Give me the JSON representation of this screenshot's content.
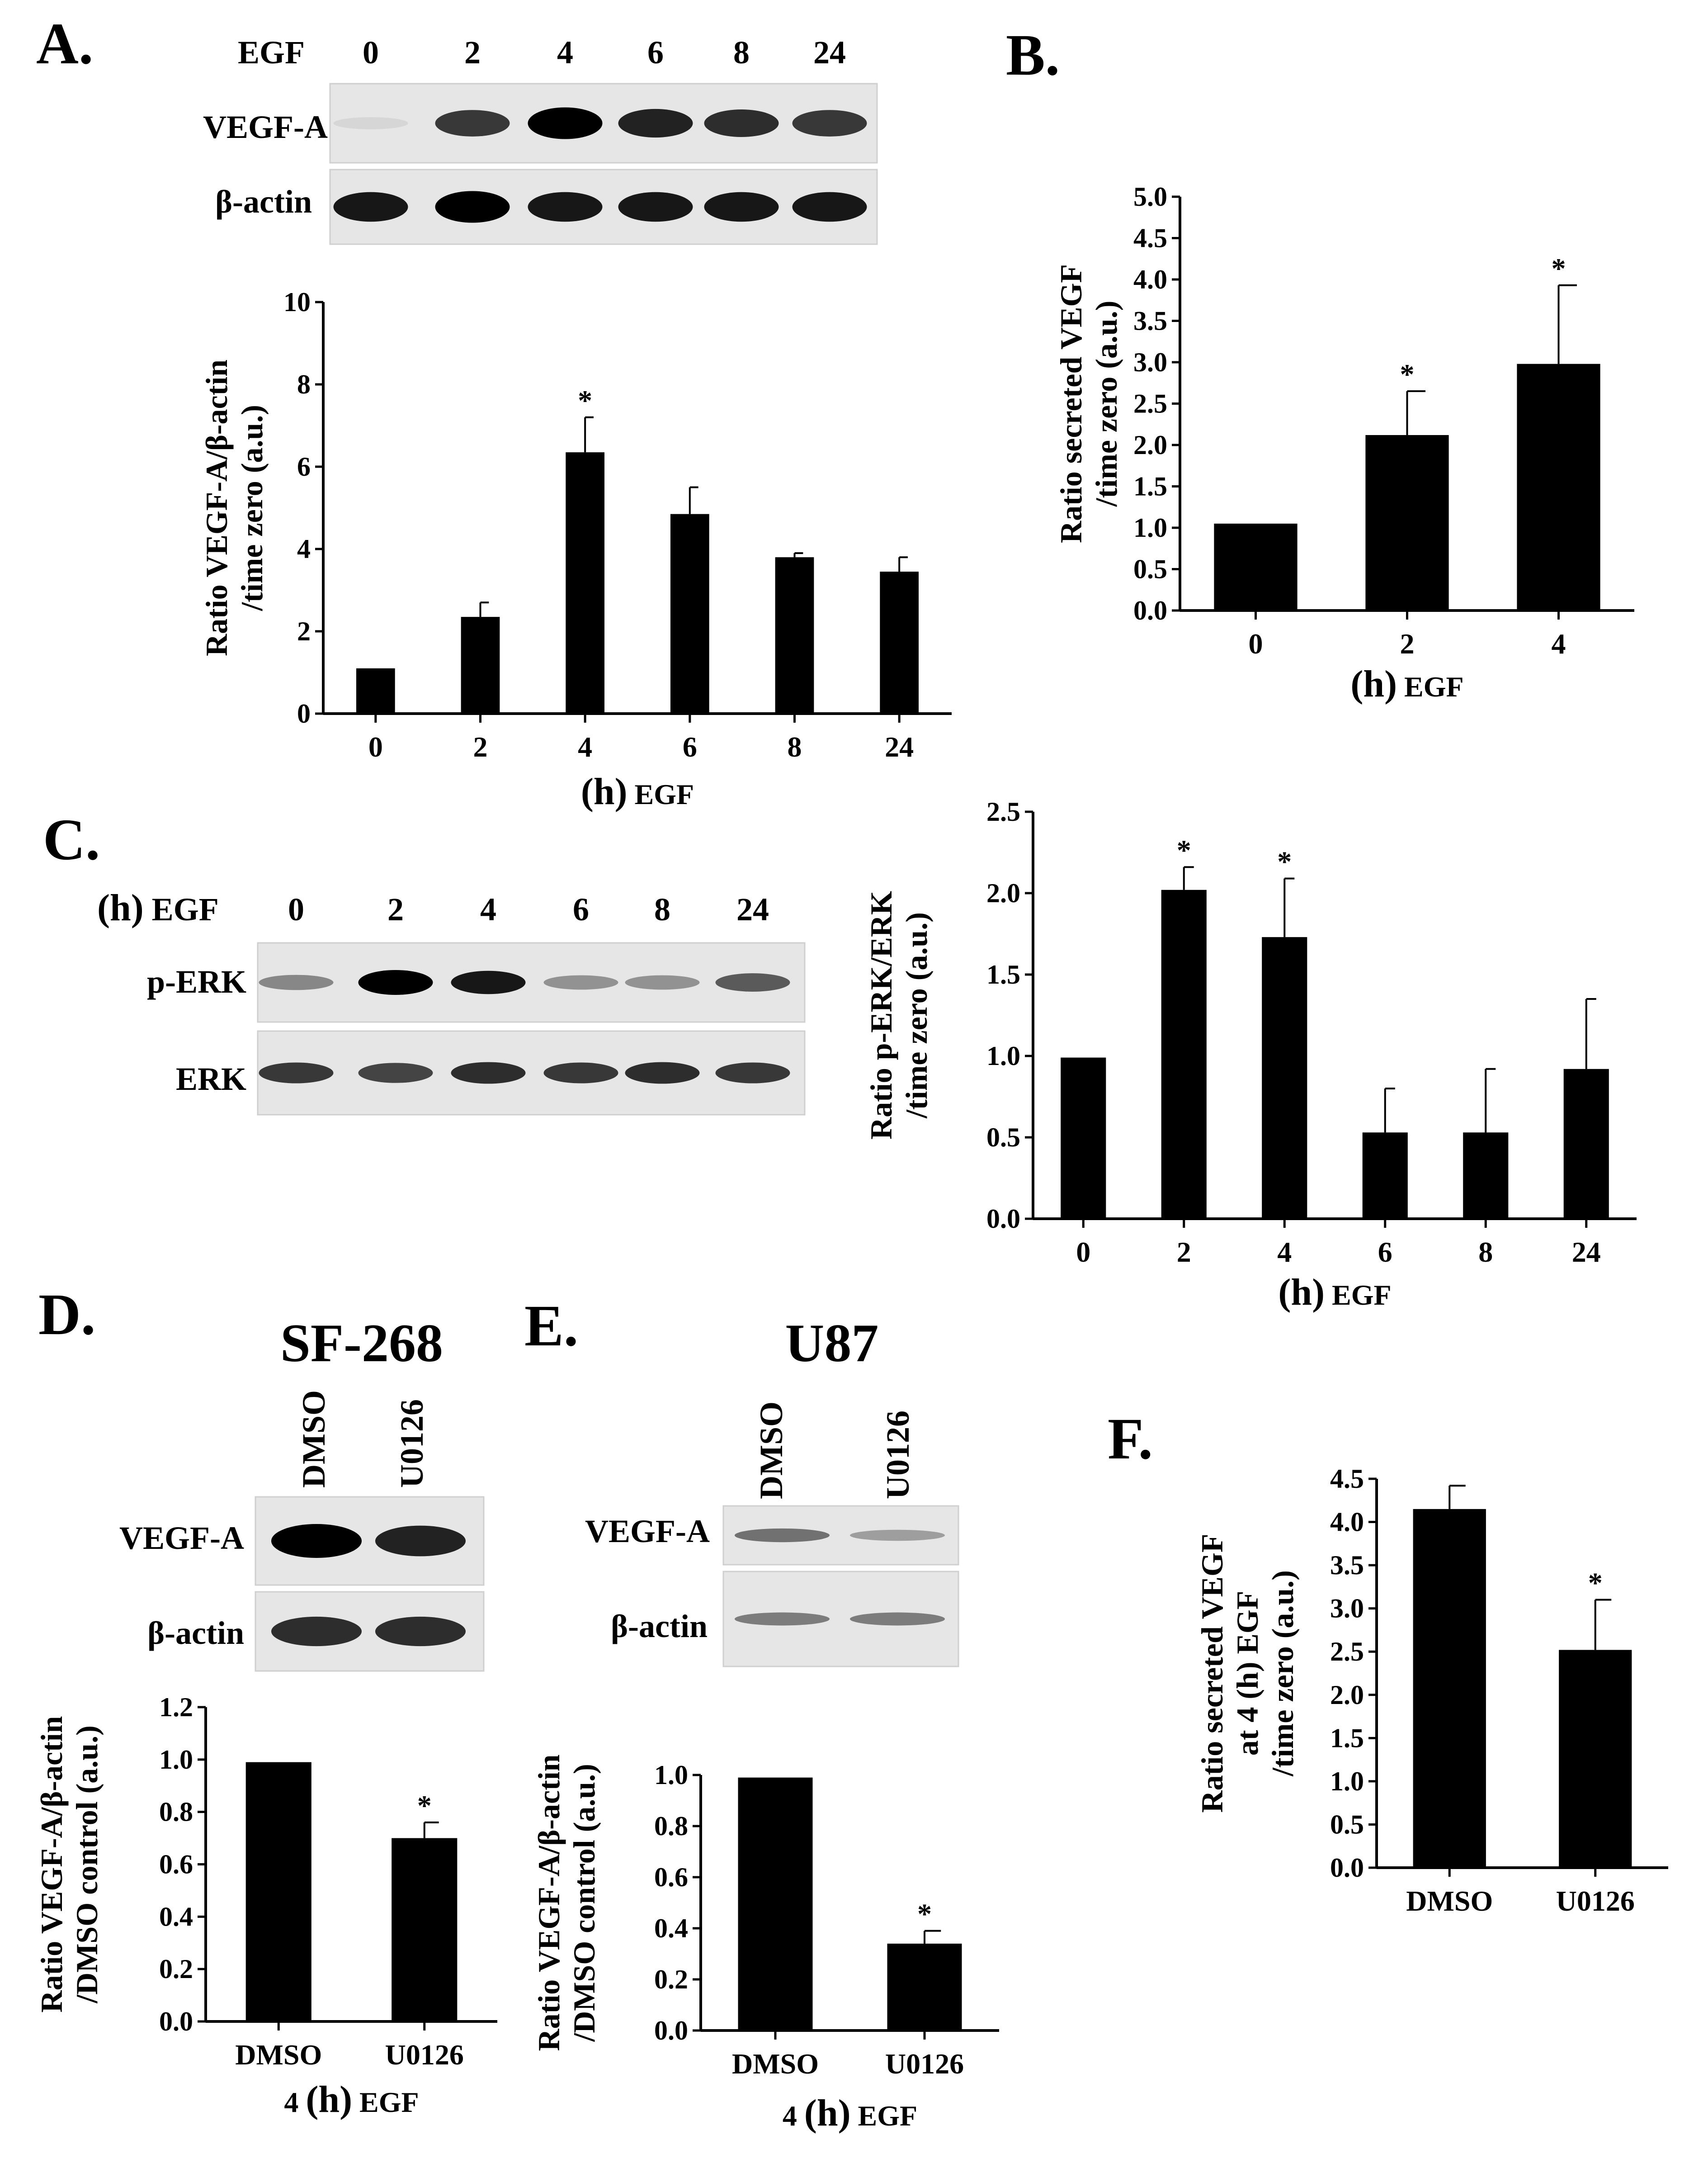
{
  "panels": {
    "A": {
      "letter": "A.",
      "blot": {
        "header": "EGF",
        "lanes": [
          "0",
          "2",
          "4",
          "6",
          "8",
          "24"
        ],
        "rows": [
          {
            "label": "VEGF-A",
            "intensity": [
              0.05,
              0.75,
              1.0,
              0.85,
              0.8,
              0.75
            ]
          },
          {
            "label": "β-actin",
            "intensity": [
              0.9,
              1.0,
              0.9,
              0.9,
              0.9,
              0.9
            ]
          }
        ]
      },
      "chart": {
        "ylabel_lines": [
          "Ratio VEGF-A/β-actin",
          "/time zero (a.u.)"
        ],
        "xlabel_unit": "(h)",
        "xlabel_text": "EGF",
        "categories": [
          "0",
          "2",
          "4",
          "6",
          "8",
          "24"
        ],
        "values": [
          1.1,
          2.35,
          6.35,
          4.85,
          3.8,
          3.45
        ],
        "errors": [
          0,
          0.35,
          0.85,
          0.65,
          0.1,
          0.35
        ],
        "significant": [
          false,
          false,
          true,
          false,
          false,
          false
        ],
        "ymin": 0,
        "ymax": 10,
        "yticks": [
          "0",
          "2",
          "4",
          "6",
          "8",
          "10"
        ]
      }
    },
    "B": {
      "letter": "B.",
      "chart": {
        "ylabel_lines": [
          "Ratio secreted VEGF",
          "/time zero (a.u.)"
        ],
        "xlabel_unit": "(h)",
        "xlabel_text": "EGF",
        "categories": [
          "0",
          "2",
          "4"
        ],
        "values": [
          1.05,
          2.12,
          2.98
        ],
        "errors": [
          0,
          0.53,
          0.95
        ],
        "significant": [
          false,
          true,
          true
        ],
        "ymin": 0,
        "ymax": 5.0,
        "yticks": [
          "0.0",
          "0.5",
          "1.0",
          "1.5",
          "2.0",
          "2.5",
          "3.0",
          "3.5",
          "4.0",
          "4.5",
          "5.0"
        ]
      }
    },
    "C": {
      "letter": "C.",
      "blot": {
        "header_unit": "(h)",
        "header": "EGF",
        "lanes": [
          "0",
          "2",
          "4",
          "6",
          "8",
          "24"
        ],
        "rows": [
          {
            "label": "p-ERK",
            "intensity": [
              0.4,
              1.0,
              0.9,
              0.35,
              0.35,
              0.6
            ]
          },
          {
            "label": "ERK",
            "intensity": [
              0.75,
              0.7,
              0.8,
              0.75,
              0.8,
              0.75
            ]
          }
        ]
      },
      "chart": {
        "ylabel_lines": [
          "Ratio p-ERK/ERK",
          "/time zero (a.u.)"
        ],
        "xlabel_unit": "(h)",
        "xlabel_text": "EGF",
        "categories": [
          "0",
          "2",
          "4",
          "6",
          "8",
          "24"
        ],
        "values": [
          0.99,
          2.02,
          1.73,
          0.53,
          0.53,
          0.92
        ],
        "errors": [
          0,
          0.14,
          0.36,
          0.27,
          0.39,
          0.43
        ],
        "significant": [
          false,
          true,
          true,
          false,
          false,
          false
        ],
        "ymin": 0,
        "ymax": 2.5,
        "yticks": [
          "0.0",
          "0.5",
          "1.0",
          "1.5",
          "2.0",
          "2.5"
        ]
      }
    },
    "D": {
      "letter": "D.",
      "cell_line": "SF-268",
      "blot": {
        "lanes": [
          "DMSO",
          "U0126"
        ],
        "rows": [
          {
            "label": "VEGF-A",
            "intensity": [
              1.0,
              0.85
            ]
          },
          {
            "label": "β-actin",
            "intensity": [
              0.8,
              0.8
            ]
          }
        ]
      },
      "chart": {
        "ylabel_lines": [
          "Ratio VEGF-A/β-actin",
          "/DMSO control (a.u.)"
        ],
        "xlabel_prefix": "4",
        "xlabel_unit": "(h)",
        "xlabel_text": "EGF",
        "categories": [
          "DMSO",
          "U0126"
        ],
        "values": [
          0.99,
          0.7
        ],
        "errors": [
          0,
          0.06
        ],
        "significant": [
          false,
          true
        ],
        "ymin": 0,
        "ymax": 1.2,
        "yticks": [
          "0.0",
          "0.2",
          "0.4",
          "0.6",
          "0.8",
          "1.0",
          "1.2"
        ]
      }
    },
    "E": {
      "letter": "E.",
      "cell_line": "U87",
      "blot": {
        "lanes": [
          "DMSO",
          "U0126"
        ],
        "rows": [
          {
            "label": "VEGF-A",
            "intensity": [
              0.5,
              0.3
            ]
          },
          {
            "label": "β-actin",
            "intensity": [
              0.45,
              0.45
            ]
          }
        ]
      },
      "chart": {
        "ylabel_lines": [
          "Ratio VEGF-A/β-actin",
          "/DMSO control (a.u.)"
        ],
        "xlabel_prefix": "4",
        "xlabel_unit": "(h)",
        "xlabel_text": "EGF",
        "categories": [
          "DMSO",
          "U0126"
        ],
        "values": [
          0.99,
          0.34
        ],
        "errors": [
          0,
          0.05
        ],
        "significant": [
          false,
          true
        ],
        "ymin": 0,
        "ymax": 1.0,
        "yticks": [
          "0.0",
          "0.2",
          "0.4",
          "0.6",
          "0.8",
          "1.0"
        ]
      }
    },
    "F": {
      "letter": "F.",
      "chart": {
        "ylabel_lines": [
          "Ratio secreted VEGF",
          "at 4 (h) EGF",
          "/time zero (a.u.)"
        ],
        "categories": [
          "DMSO",
          "U0126"
        ],
        "values": [
          4.15,
          2.52
        ],
        "errors": [
          0.27,
          0.58
        ],
        "significant": [
          false,
          true
        ],
        "ymin": 0,
        "ymax": 4.5,
        "yticks": [
          "0.0",
          "0.5",
          "1.0",
          "1.5",
          "2.0",
          "2.5",
          "3.0",
          "3.5",
          "4.0",
          "4.5"
        ]
      }
    }
  }
}
